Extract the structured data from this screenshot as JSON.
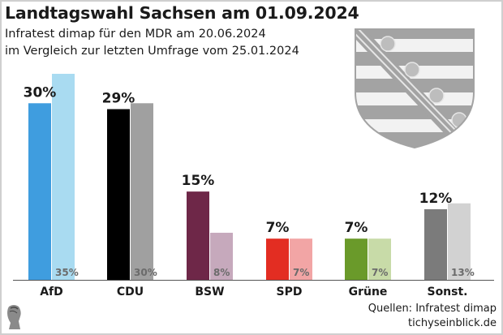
{
  "header": {
    "title": "Landtagswahl Sachsen am 01.09.2024",
    "subtitle_line1": "Infratest dimap für den MDR am 20.06.2024",
    "subtitle_line2": "im Vergleich zur letzten Umfrage vom 25.01.2024"
  },
  "footer": {
    "source": "Quellen: Infratest dimap",
    "site": "tichyseinblick.de",
    "logo_icon": "tichys-einblick-head-logo"
  },
  "emblem_icon": "saxony-coat-of-arms",
  "chart_data": {
    "type": "bar",
    "title": "Landtagswahl Sachsen am 01.09.2024",
    "xlabel": "",
    "ylabel": "",
    "ylim": [
      0,
      35
    ],
    "grid": false,
    "legend": "none",
    "categories": [
      "AfD",
      "CDU",
      "BSW",
      "SPD",
      "Grüne",
      "Sonst."
    ],
    "series": [
      {
        "name": "Umfrage 20.06.2024",
        "values": [
          30,
          29,
          15,
          7,
          7,
          12
        ],
        "labels": [
          "30%",
          "29%",
          "15%",
          "7%",
          "7%",
          "12%"
        ],
        "colors": [
          "#3f9ddf",
          "#000000",
          "#6e2748",
          "#e32d22",
          "#6a9a2a",
          "#7b7b7b"
        ]
      },
      {
        "name": "Umfrage 25.01.2024",
        "values": [
          35,
          30,
          8,
          7,
          7,
          13
        ],
        "labels": [
          "35%",
          "30%",
          "8%",
          "7%",
          "7%",
          "13%"
        ],
        "colors": [
          "#a9dbf1",
          "#a0a0a0",
          "#c6a9bc",
          "#f2a5a5",
          "#c8dba8",
          "#d2d2d2"
        ]
      }
    ]
  }
}
